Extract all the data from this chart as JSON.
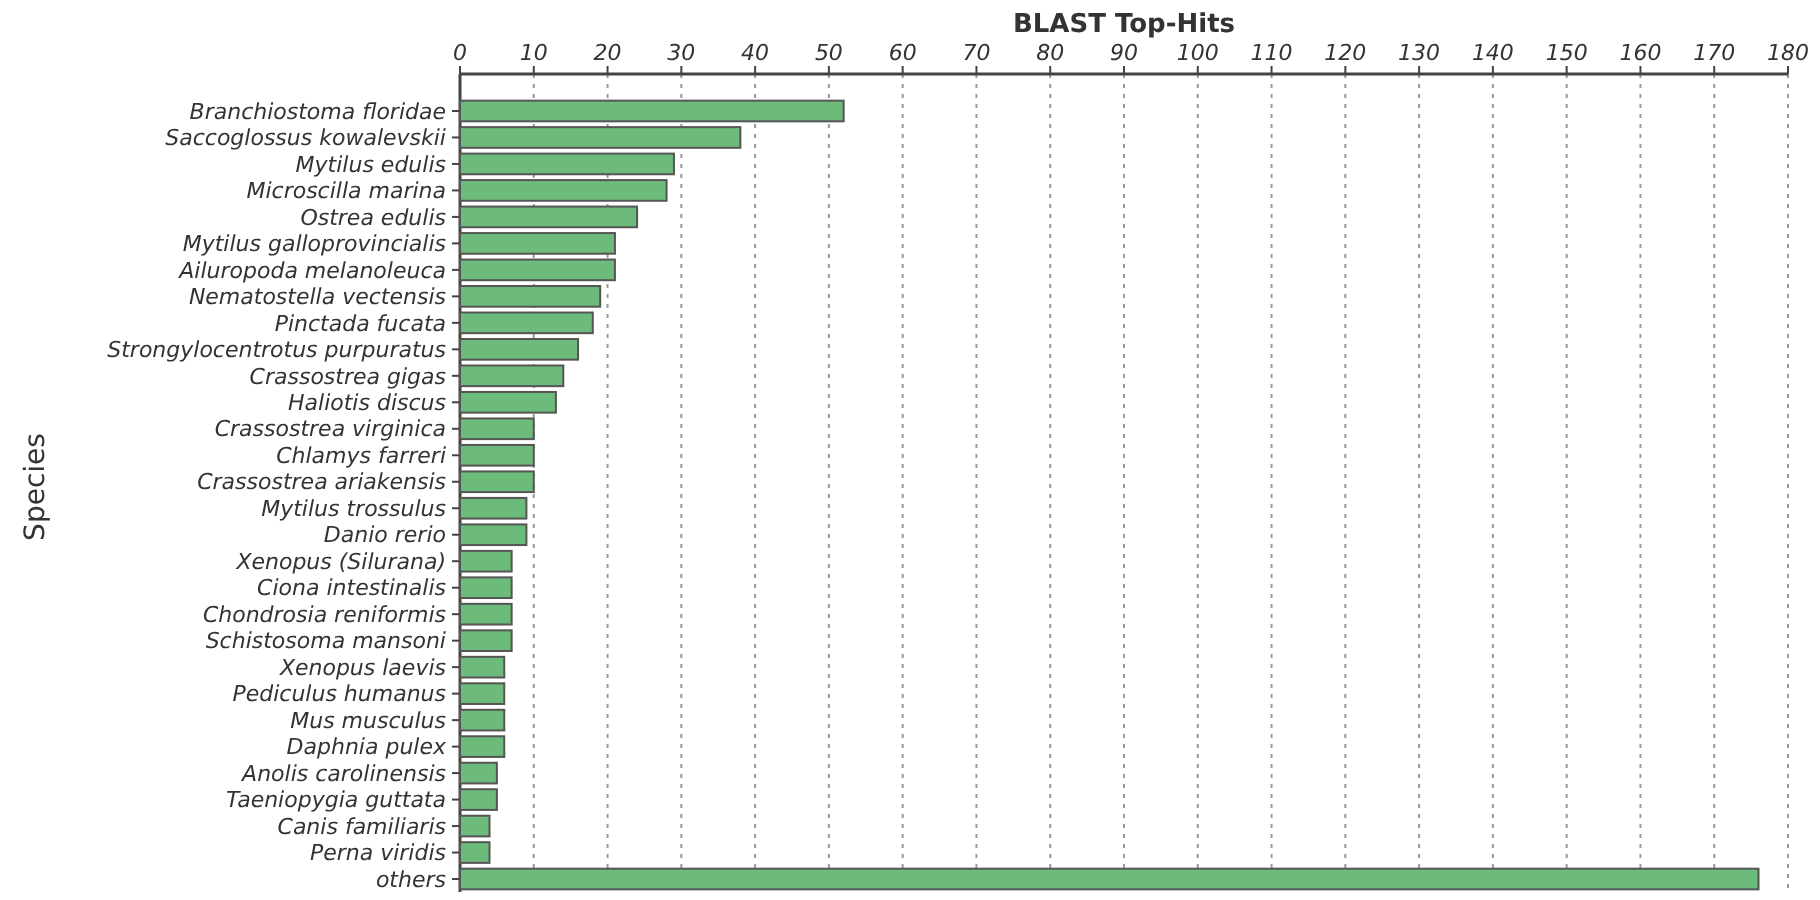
{
  "chart_data": {
    "type": "bar",
    "orientation": "horizontal",
    "title": "BLAST Top-Hits",
    "ylabel": "Species",
    "categories": [
      "Branchiostoma floridae",
      "Saccoglossus kowalevskii",
      "Mytilus edulis",
      "Microscilla marina",
      "Ostrea edulis",
      "Mytilus galloprovincialis",
      "Ailuropoda melanoleuca",
      "Nematostella vectensis",
      "Pinctada fucata",
      "Strongylocentrotus purpuratus",
      "Crassostrea gigas",
      "Haliotis discus",
      "Crassostrea virginica",
      "Chlamys farreri",
      "Crassostrea ariakensis",
      "Mytilus trossulus",
      "Danio rerio",
      "Xenopus (Silurana)",
      "Ciona intestinalis",
      "Chondrosia reniformis",
      "Schistosoma mansoni",
      "Xenopus laevis",
      "Pediculus humanus",
      "Mus musculus",
      "Daphnia pulex",
      "Anolis carolinensis",
      "Taeniopygia guttata",
      "Canis familiaris",
      "Perna viridis",
      "others"
    ],
    "values": [
      52,
      38,
      29,
      28,
      24,
      21,
      21,
      19,
      18,
      16,
      14,
      13,
      10,
      10,
      10,
      9,
      9,
      7,
      7,
      7,
      7,
      6,
      6,
      6,
      6,
      5,
      5,
      4,
      4,
      176
    ],
    "color": "#6dbb7a",
    "xlim": [
      0,
      180
    ],
    "xticks": [
      0,
      10,
      20,
      30,
      40,
      50,
      60,
      70,
      80,
      90,
      100,
      110,
      120,
      130,
      140,
      150,
      160,
      170,
      180
    ],
    "grid": "x"
  }
}
